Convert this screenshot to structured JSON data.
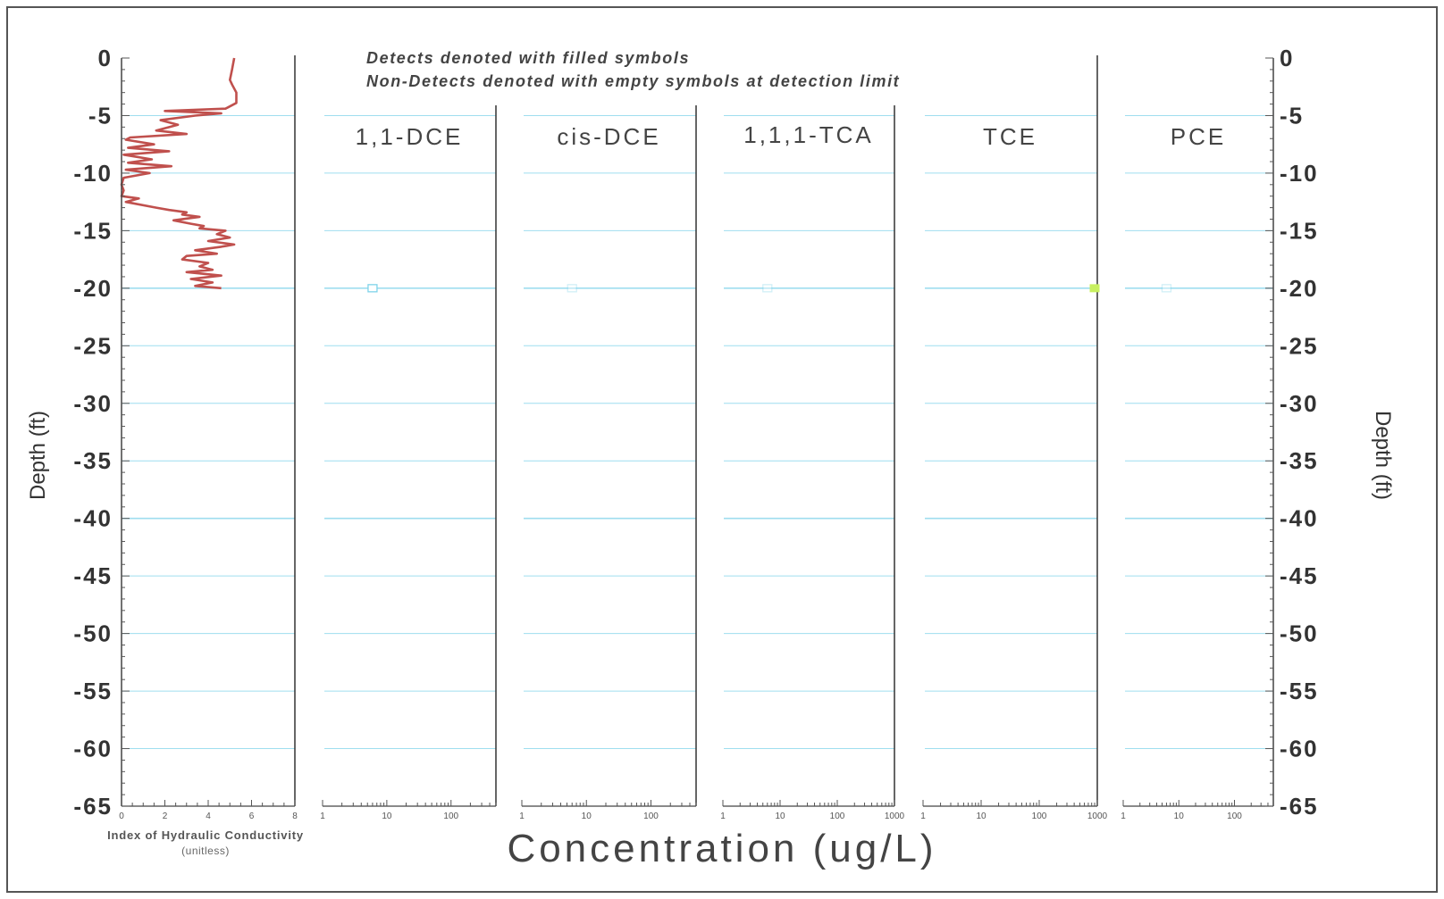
{
  "notes": {
    "line1": "Detects denoted with filled symbols",
    "line2": "Non-Detects denoted with empty symbols at detection limit"
  },
  "depth_axis": {
    "label_left": "Depth (ft)",
    "label_right": "Depth (ft)",
    "ylim": [
      -65,
      0
    ],
    "ticks": [
      "0",
      "-5",
      "-10",
      "-15",
      "-20",
      "-25",
      "-30",
      "-35",
      "-40",
      "-45",
      "-50",
      "-55",
      "-60",
      "-65"
    ]
  },
  "concentration_label": "Concentration (ug/L)",
  "colors": {
    "frame": "#555555",
    "gridline": "#7fd3ea",
    "hc_line": "#c0504d",
    "non_detect_symbol": "#7fd3ea",
    "detect_symbol": "#c8f060"
  },
  "chart_data": [
    {
      "type": "line",
      "panel": "hydraulic_conductivity",
      "xlabel": "Index of Hydraulic Conductivity",
      "xlabel_sub": "(unitless)",
      "xlim": [
        0,
        8
      ],
      "xticks": [
        "0",
        "2",
        "4",
        "6",
        "8"
      ],
      "ylim": [
        -65,
        0
      ],
      "series": [
        {
          "x": [
            5.2,
            5.1,
            5.0,
            5.1,
            5.3,
            5.3,
            4.8,
            2.0,
            4.6,
            3.4,
            1.8,
            2.6,
            1.6,
            3.0,
            0.4,
            0.2,
            1.5,
            0.3,
            2.2,
            0.1,
            1.4,
            0.3,
            2.3,
            0.2,
            1.3,
            0.1,
            0.0,
            0.1,
            0.0,
            0.8,
            0.2,
            1.6,
            2.2,
            3.0,
            2.8,
            3.6,
            2.4,
            3.2,
            3.8,
            3.6,
            4.8,
            4.4,
            5.0,
            4.0,
            5.2,
            4.6,
            3.4,
            4.4,
            3.0,
            2.8,
            4.0,
            3.6,
            4.2,
            3.0,
            4.6,
            3.2,
            4.2,
            3.4,
            4.6
          ],
          "y": [
            0,
            -1.0,
            -1.9,
            -2.3,
            -3.0,
            -3.9,
            -4.4,
            -4.6,
            -4.8,
            -5.0,
            -5.4,
            -5.8,
            -6.3,
            -6.6,
            -6.9,
            -7.1,
            -7.5,
            -7.8,
            -8.1,
            -8.4,
            -8.8,
            -9.1,
            -9.4,
            -9.7,
            -10.0,
            -10.4,
            -11.0,
            -11.5,
            -12.0,
            -12.2,
            -12.5,
            -13.0,
            -13.2,
            -13.4,
            -13.6,
            -13.8,
            -14.1,
            -14.4,
            -14.6,
            -14.8,
            -15.0,
            -15.3,
            -15.6,
            -15.9,
            -16.2,
            -16.4,
            -16.7,
            -17.0,
            -17.2,
            -17.5,
            -17.8,
            -18.1,
            -18.4,
            -18.6,
            -18.9,
            -19.2,
            -19.5,
            -19.8,
            -20.0
          ]
        }
      ]
    },
    {
      "type": "scatter",
      "title": "1,1-DCE",
      "xscale": "log",
      "xlim": [
        1,
        500
      ],
      "xticks": [
        "1",
        "10",
        "100"
      ],
      "ylim": [
        -65,
        0
      ],
      "points": [
        {
          "x": 6,
          "y": -20,
          "detect": false
        }
      ]
    },
    {
      "type": "scatter",
      "title": "cis-DCE",
      "xscale": "log",
      "xlim": [
        1,
        500
      ],
      "xticks": [
        "1",
        "10",
        "100"
      ],
      "ylim": [
        -65,
        0
      ],
      "points": [
        {
          "x": 6,
          "y": -20,
          "detect": false
        }
      ]
    },
    {
      "type": "scatter",
      "title": "1,1,1-TCA",
      "xscale": "log",
      "xlim": [
        1,
        1000
      ],
      "xticks": [
        "1",
        "10",
        "100",
        "1000"
      ],
      "ylim": [
        -65,
        0
      ],
      "points": [
        {
          "x": 6,
          "y": -20,
          "detect": false
        }
      ]
    },
    {
      "type": "scatter",
      "title": "TCE",
      "xscale": "log",
      "xlim": [
        1,
        1000
      ],
      "xticks": [
        "1",
        "10",
        "100",
        "1000"
      ],
      "ylim": [
        -65,
        0
      ],
      "points": [
        {
          "x": 900,
          "y": -20,
          "detect": true
        }
      ]
    },
    {
      "type": "scatter",
      "title": "PCE",
      "xscale": "log",
      "xlim": [
        1,
        500
      ],
      "xticks": [
        "1",
        "10",
        "100"
      ],
      "ylim": [
        -65,
        0
      ],
      "points": [
        {
          "x": 6,
          "y": -20,
          "detect": false
        }
      ]
    }
  ]
}
